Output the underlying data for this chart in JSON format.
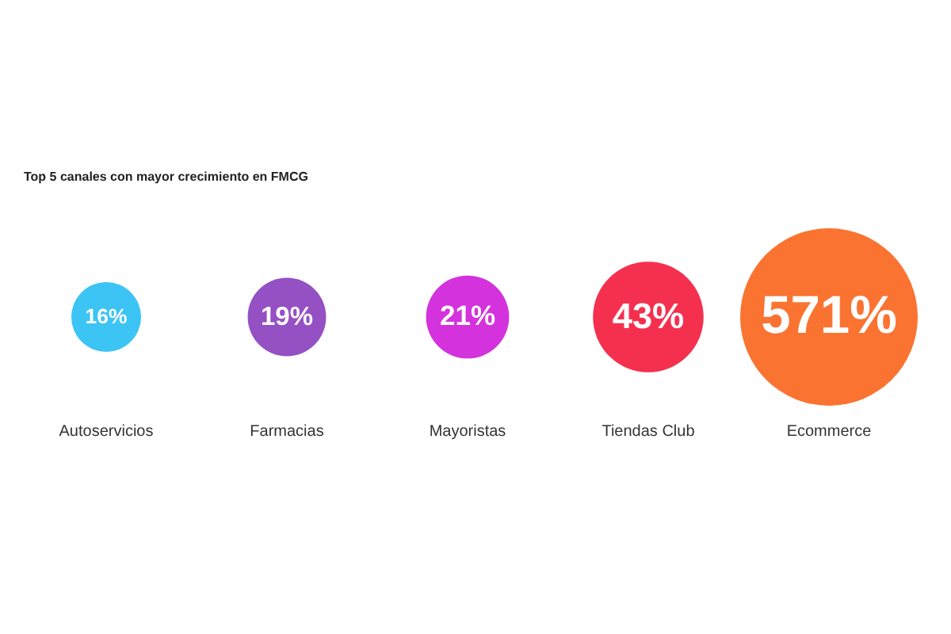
{
  "chart_data": {
    "type": "other",
    "title": "Top 5 canales con mayor crecimiento en FMCG",
    "categories": [
      "Autoservicios",
      "Farmacias",
      "Mayoristas",
      "Tiendas Club",
      "Ecommerce"
    ],
    "values": [
      16,
      19,
      21,
      43,
      571
    ],
    "value_labels": [
      "16%",
      "19%",
      "21%",
      "43%",
      "571%"
    ],
    "colors": [
      "#3cc4f5",
      "#9550c4",
      "#d332dc",
      "#f5304f",
      "#fb7330"
    ]
  }
}
